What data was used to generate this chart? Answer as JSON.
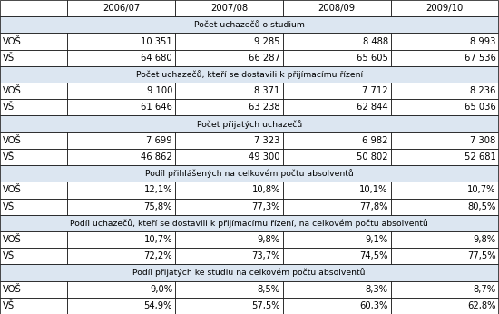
{
  "col_headers": [
    "",
    "2006/07",
    "2007/08",
    "2008/09",
    "2009/10"
  ],
  "sections": [
    {
      "header": "Počet uchazečů o studium",
      "rows": [
        [
          "VOŠ",
          "10 351",
          "9 285",
          "8 488",
          "8 993"
        ],
        [
          "VŠ",
          "64 680",
          "66 287",
          "65 605",
          "67 536"
        ]
      ]
    },
    {
      "header": "Počet uchazečů, kteří se dostavili k přijímacímu řízení",
      "rows": [
        [
          "VOŠ",
          "9 100",
          "8 371",
          "7 712",
          "8 236"
        ],
        [
          "VŠ",
          "61 646",
          "63 238",
          "62 844",
          "65 036"
        ]
      ]
    },
    {
      "header": "Počet přijatých uchazečů",
      "rows": [
        [
          "VOŠ",
          "7 699",
          "7 323",
          "6 982",
          "7 308"
        ],
        [
          "VŠ",
          "46 862",
          "49 300",
          "50 802",
          "52 681"
        ]
      ]
    },
    {
      "header": "Podíl přihlášených na celkovém počtu absolventů",
      "rows": [
        [
          "VOŠ",
          "12,1%",
          "10,8%",
          "10,1%",
          "10,7%"
        ],
        [
          "VŠ",
          "75,8%",
          "77,3%",
          "77,8%",
          "80,5%"
        ]
      ]
    },
    {
      "header": "Podíl uchazečů, kteří se dostavili k přijímacímu řízení, na celkovém počtu absolventů",
      "rows": [
        [
          "VOŠ",
          "10,7%",
          "9,8%",
          "9,1%",
          "9,8%"
        ],
        [
          "VŠ",
          "72,2%",
          "73,7%",
          "74,5%",
          "77,5%"
        ]
      ]
    },
    {
      "header": "Podíl přijatých ke studiu na celkovém počtu absolventů",
      "rows": [
        [
          "VOŠ",
          "9,0%",
          "8,5%",
          "8,3%",
          "8,7%"
        ],
        [
          "VŠ",
          "54,9%",
          "57,5%",
          "60,3%",
          "62,8%"
        ]
      ]
    }
  ],
  "section_header_bg": "#dce6f1",
  "row_bg": "#ffffff",
  "border_color": "#000000",
  "text_color": "#000000",
  "font_size": 7.2,
  "fig_width": 5.5,
  "fig_height": 3.46,
  "dpi": 100
}
